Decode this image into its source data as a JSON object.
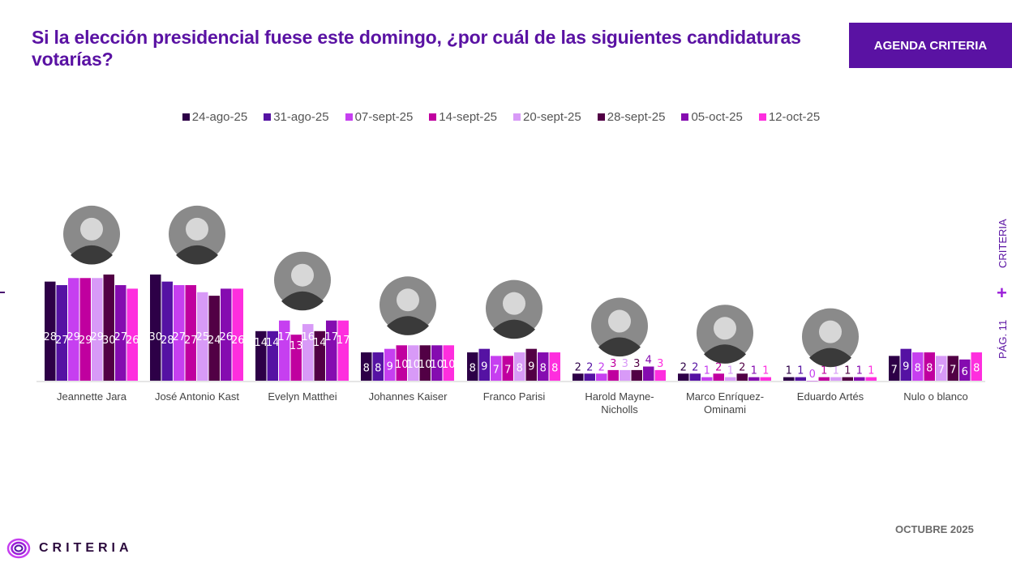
{
  "title": "Si la elección presidencial fuese este domingo, ¿por cuál de las siguientes candidaturas votarías?",
  "badge": "AGENDA CRITERIA",
  "side": {
    "brand": "CRITERIA",
    "page": "PÁG. 11",
    "separator": "+"
  },
  "footer": {
    "date": "OCTUBRE 2025",
    "logo": "CRITERIA"
  },
  "chart_data": {
    "type": "bar",
    "title": "Si la elección presidencial fuese este domingo, ¿por cuál de las siguientes candidaturas votarías?",
    "xlabel": "",
    "ylabel": "",
    "ylim": [
      0,
      30
    ],
    "grid": false,
    "legend_position": "top-center",
    "categories": [
      "Jeannette Jara",
      "José Antonio Kast",
      "Evelyn Matthei",
      "Johannes Kaiser",
      "Franco Parisi",
      "Harold Mayne-Nicholls",
      "Marco Enríquez-Ominami",
      "Eduardo Artés",
      "Nulo o blanco"
    ],
    "category_lines": [
      [
        "Jeannette Jara"
      ],
      [
        "José Antonio Kast"
      ],
      [
        "Evelyn Matthei"
      ],
      [
        "Johannes Kaiser"
      ],
      [
        "Franco Parisi"
      ],
      [
        "Harold Mayne-",
        "Nicholls"
      ],
      [
        "Marco Enríquez-",
        "Ominami"
      ],
      [
        "Eduardo Artés"
      ],
      [
        "Nulo o blanco"
      ]
    ],
    "series": [
      {
        "name": "24-ago-25",
        "color": "#2d0047",
        "values": [
          28,
          30,
          14,
          8,
          8,
          2,
          2,
          1,
          7
        ]
      },
      {
        "name": "31-ago-25",
        "color": "#5512a3",
        "values": [
          27,
          28,
          14,
          8,
          9,
          2,
          2,
          1,
          9
        ]
      },
      {
        "name": "07-sept-25",
        "color": "#c63ff0",
        "values": [
          29,
          27,
          17,
          9,
          7,
          2,
          1,
          0,
          8
        ]
      },
      {
        "name": "14-sept-25",
        "color": "#c0009f",
        "values": [
          29,
          27,
          13,
          10,
          7,
          3,
          2,
          1,
          8
        ]
      },
      {
        "name": "20-sept-25",
        "color": "#d89af7",
        "values": [
          29,
          25,
          16,
          10,
          8,
          3,
          1,
          1,
          7
        ]
      },
      {
        "name": "28-sept-25",
        "color": "#520045",
        "values": [
          30,
          24,
          14,
          10,
          9,
          3,
          2,
          1,
          7
        ]
      },
      {
        "name": "05-oct-25",
        "color": "#850cb0",
        "values": [
          27,
          26,
          17,
          10,
          8,
          4,
          1,
          1,
          6
        ]
      },
      {
        "name": "12-oct-25",
        "color": "#fe2ede",
        "values": [
          26,
          26,
          17,
          10,
          8,
          3,
          1,
          1,
          8
        ]
      }
    ],
    "candidate_photos": [
      true,
      true,
      true,
      true,
      true,
      true,
      true,
      true,
      false
    ]
  }
}
